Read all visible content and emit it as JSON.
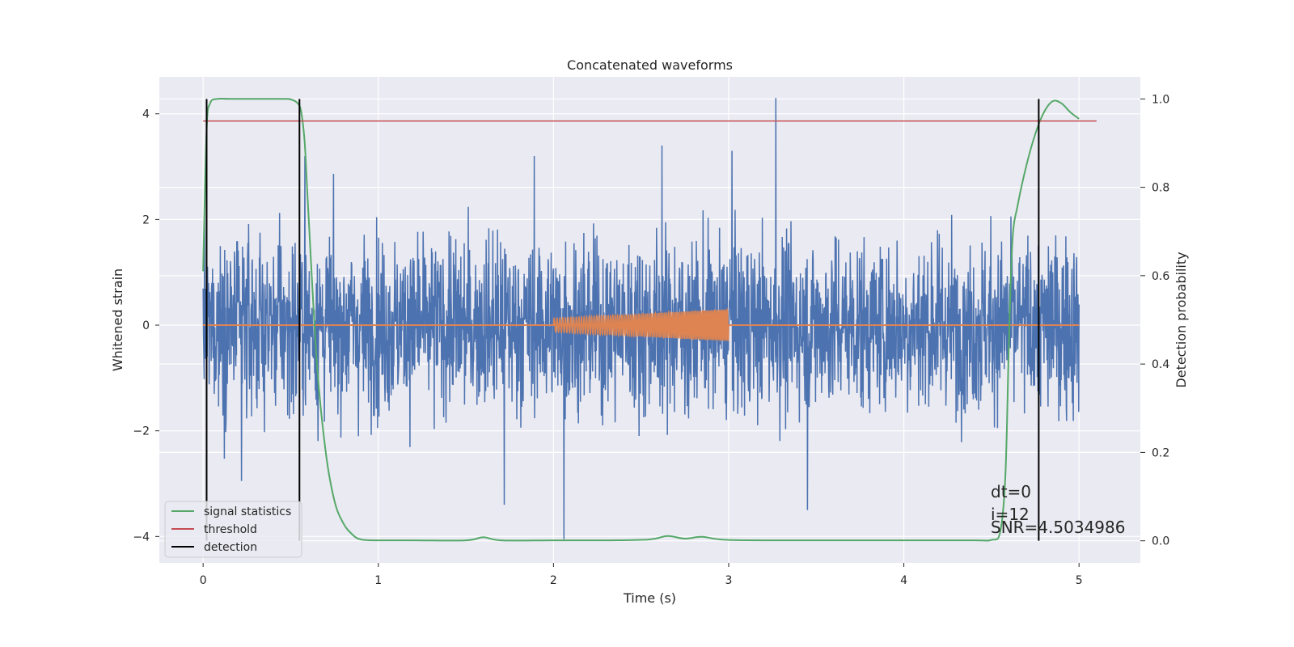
{
  "chart_data": {
    "type": "line",
    "title": "Concatenated waveforms",
    "xlabel": "Time (s)",
    "ylabel": "Whitened strain",
    "y2label": "Detection probability",
    "xlim": [
      -0.25,
      5.35
    ],
    "ylim": [
      -4.5,
      4.7
    ],
    "y2lim": [
      -0.05,
      1.05
    ],
    "x_ticks": [
      0,
      1,
      2,
      3,
      4,
      5
    ],
    "y_ticks": [
      -4,
      -2,
      0,
      2,
      4
    ],
    "y2_ticks": [
      0.0,
      0.2,
      0.4,
      0.6,
      0.8,
      1.0
    ],
    "x_tick_labels": [
      "0",
      "1",
      "2",
      "3",
      "4",
      "5"
    ],
    "y_tick_labels": [
      "−4",
      "−2",
      "0",
      "2",
      "4"
    ],
    "y2_tick_labels": [
      "0.0",
      "0.2",
      "0.4",
      "0.6",
      "0.8",
      "1.0"
    ],
    "grid": true,
    "legend_position": "lower-left",
    "colors": {
      "strain": "#4c72b0",
      "injection": "#dd8452",
      "signal_statistics": "#55a868",
      "threshold": "#c44e52",
      "detection": "#000000",
      "background": "#eaeaf2",
      "grid": "#ffffff"
    },
    "series": [
      {
        "name": "",
        "kind": "noise",
        "color": "#4c72b0",
        "x_range": [
          0,
          5
        ],
        "typical_amplitude": 1.0,
        "peaks": [
          {
            "x": 3.27,
            "y": 4.3
          },
          {
            "x": 2.06,
            "y": -4.05
          },
          {
            "x": 2.62,
            "y": 3.4
          },
          {
            "x": 3.02,
            "y": 3.3
          },
          {
            "x": 1.89,
            "y": 3.2
          },
          {
            "x": 0.58,
            "y": 3.2
          },
          {
            "x": 3.45,
            "y": -3.5
          },
          {
            "x": 1.72,
            "y": -3.4
          },
          {
            "x": 0.22,
            "y": -2.95
          }
        ]
      },
      {
        "name": "",
        "kind": "chirp",
        "color": "#dd8452",
        "x_range": [
          2.0,
          3.0
        ],
        "start_amplitude": 0.13,
        "end_amplitude": 0.3,
        "baseline_range": [
          0,
          5
        ],
        "baseline_value": 0
      },
      {
        "name": "signal statistics",
        "axis": "right",
        "color": "#55a868",
        "x": [
          0.0,
          0.02,
          0.04,
          0.08,
          0.15,
          0.3,
          0.45,
          0.5,
          0.54,
          0.56,
          0.58,
          0.6,
          0.65,
          0.7,
          0.75,
          0.8,
          0.85,
          0.9,
          1.0,
          1.2,
          1.5,
          1.6,
          1.7,
          2.0,
          2.3,
          2.55,
          2.65,
          2.75,
          2.85,
          3.0,
          3.5,
          4.0,
          4.4,
          4.5,
          4.55,
          4.58,
          4.6,
          4.62,
          4.65,
          4.7,
          4.75,
          4.8,
          4.85,
          4.9,
          4.95,
          5.0
        ],
        "values": [
          0.61,
          0.93,
          0.99,
          1.0,
          1.0,
          1.0,
          1.0,
          0.999,
          0.99,
          0.97,
          0.9,
          0.75,
          0.4,
          0.2,
          0.09,
          0.04,
          0.015,
          0.003,
          0.001,
          0.001,
          0.001,
          0.008,
          0.001,
          0.001,
          0.001,
          0.003,
          0.011,
          0.005,
          0.009,
          0.002,
          0.001,
          0.001,
          0.001,
          0.002,
          0.02,
          0.15,
          0.45,
          0.68,
          0.76,
          0.85,
          0.92,
          0.97,
          0.995,
          0.99,
          0.97,
          0.955
        ]
      },
      {
        "name": "threshold",
        "axis": "right",
        "color": "#c44e52",
        "x": [
          0.0,
          5.1
        ],
        "values": [
          0.95,
          0.95
        ]
      },
      {
        "name": "detection",
        "kind": "vlines",
        "color": "#000000",
        "x": [
          0.02,
          0.55,
          4.77
        ],
        "y2_range": [
          0.0,
          1.0
        ]
      }
    ],
    "annotations": [
      "dt=0",
      "i=12",
      "SNR=4.5034986"
    ]
  }
}
